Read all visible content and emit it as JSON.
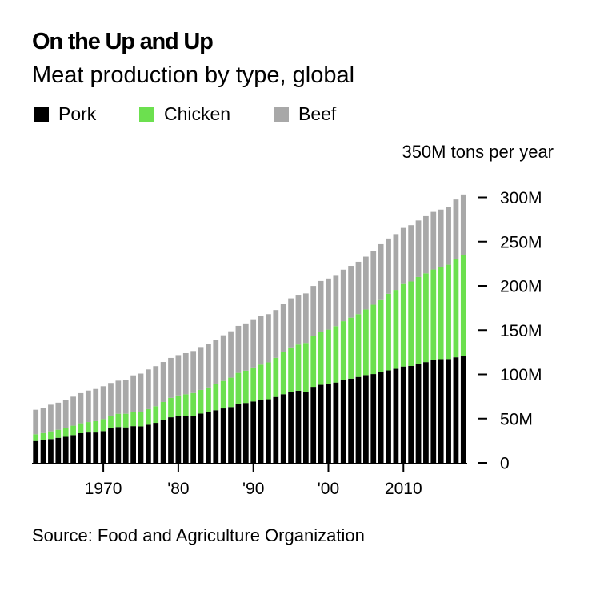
{
  "chart_data": {
    "type": "bar",
    "stacked": true,
    "title": "On the Up and Up",
    "subtitle": "Meat production by type, global",
    "ylabel": "350M tons per year",
    "source": "Source: Food and Agriculture Organization",
    "ylim": [
      0,
      300
    ],
    "yticks": [
      {
        "value": 0,
        "label": "0"
      },
      {
        "value": 50,
        "label": "50M"
      },
      {
        "value": 100,
        "label": "100M"
      },
      {
        "value": 150,
        "label": "150M"
      },
      {
        "value": 200,
        "label": "200M"
      },
      {
        "value": 250,
        "label": "250M"
      },
      {
        "value": 300,
        "label": "300M"
      }
    ],
    "xticks": [
      {
        "year": 1970,
        "label": "1970"
      },
      {
        "year": 1980,
        "label": "'80"
      },
      {
        "year": 1990,
        "label": "'90"
      },
      {
        "year": 2000,
        "label": "'00"
      },
      {
        "year": 2010,
        "label": "2010"
      }
    ],
    "legend": [
      {
        "name": "Pork",
        "color": "#000000"
      },
      {
        "name": "Chicken",
        "color": "#6ce04f"
      },
      {
        "name": "Beef",
        "color": "#a8a8a8"
      }
    ],
    "categories": [
      1961,
      1962,
      1963,
      1964,
      1965,
      1966,
      1967,
      1968,
      1969,
      1970,
      1971,
      1972,
      1973,
      1974,
      1975,
      1976,
      1977,
      1978,
      1979,
      1980,
      1981,
      1982,
      1983,
      1984,
      1985,
      1986,
      1987,
      1988,
      1989,
      1990,
      1991,
      1992,
      1993,
      1994,
      1995,
      1996,
      1997,
      1998,
      1999,
      2000,
      2001,
      2002,
      2003,
      2004,
      2005,
      2006,
      2007,
      2008,
      2009,
      2010,
      2011,
      2012,
      2013,
      2014,
      2015,
      2016,
      2017,
      2018
    ],
    "series": [
      {
        "name": "Pork",
        "color": "#000000",
        "values": [
          24.7,
          25.6,
          26.9,
          28.3,
          29.4,
          31.4,
          33.5,
          34.3,
          34.3,
          35.9,
          39.4,
          40.5,
          40.1,
          41.5,
          41.2,
          43.1,
          45.2,
          48.5,
          51.5,
          52.7,
          52.8,
          53.2,
          55.7,
          57.6,
          59.5,
          61.5,
          63.1,
          66.3,
          67.7,
          69.4,
          70.9,
          71.9,
          74.5,
          77.6,
          79.9,
          81.5,
          80.2,
          85.9,
          88.2,
          88.9,
          90.8,
          93.5,
          95.2,
          97.1,
          99.2,
          100.4,
          102.5,
          104.5,
          106.3,
          108.9,
          109.5,
          111.8,
          113.9,
          116.2,
          117.2,
          117.4,
          119.3,
          120.9
        ]
      },
      {
        "name": "Chicken",
        "color": "#6ce04f",
        "values": [
          7.6,
          8.0,
          8.7,
          9.1,
          10.0,
          10.6,
          11.2,
          11.8,
          12.8,
          13.6,
          14.0,
          15.0,
          15.4,
          16.1,
          16.6,
          17.6,
          18.8,
          20.3,
          22.0,
          23.5,
          24.7,
          25.7,
          26.7,
          27.7,
          29.2,
          31.1,
          33.2,
          35.4,
          36.5,
          38.4,
          40.1,
          41.7,
          44.2,
          47.6,
          50.6,
          52.2,
          55.3,
          57.2,
          59.8,
          61.7,
          63.7,
          66.6,
          68.9,
          71.0,
          74.2,
          78.3,
          82.3,
          86.6,
          89.1,
          93.2,
          95.5,
          98.2,
          100.3,
          102.3,
          104.0,
          106.5,
          110.7,
          114.0
        ]
      },
      {
        "name": "Beef",
        "color": "#a8a8a8",
        "values": [
          27.7,
          28.8,
          30.1,
          30.6,
          31.6,
          32.8,
          34.1,
          35.6,
          36.4,
          37.1,
          36.9,
          37.4,
          38.4,
          41.3,
          43.1,
          44.9,
          45.3,
          45.2,
          45.1,
          45.6,
          46.5,
          47.5,
          48.5,
          49.4,
          50.6,
          51.6,
          52.4,
          53.1,
          53.4,
          54.5,
          54.7,
          54.5,
          54.0,
          54.7,
          55.4,
          55.4,
          56.0,
          56.8,
          57.5,
          57.7,
          56.9,
          58.2,
          58.5,
          59.1,
          59.6,
          61.0,
          62.3,
          62.4,
          63.1,
          63.4,
          63.6,
          63.9,
          64.6,
          65.1,
          65.0,
          65.2,
          67.6,
          68.4
        ]
      }
    ]
  }
}
